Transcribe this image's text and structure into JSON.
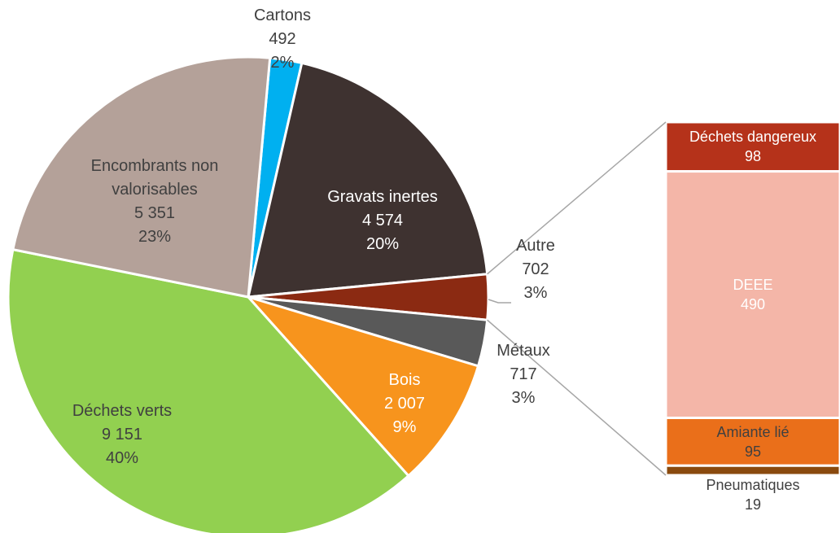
{
  "chart_data": {
    "type": "pie-of-bar",
    "categories": [
      "Cartons",
      "Gravats inertes",
      "Autre",
      "Métaux",
      "Bois",
      "Déchets verts",
      "Encombrants non valorisables"
    ],
    "values": [
      492,
      4574,
      702,
      717,
      2007,
      9151,
      5351
    ],
    "value_labels": [
      "492",
      "4 574",
      "702",
      "717",
      "2 007",
      "9 151",
      "5 351"
    ],
    "percent_labels": [
      "2%",
      "20%",
      "3%",
      "3%",
      "9%",
      "40%",
      "23%"
    ],
    "colors": [
      "#00b0f0",
      "#3e3230",
      "#8b2a12",
      "#595959",
      "#f7941d",
      "#92d050",
      "#b4a199"
    ],
    "bar": {
      "categories": [
        "Déchets dangereux",
        "DEEE",
        "Amiante lié",
        "Pneumatiques"
      ],
      "values": [
        98,
        490,
        95,
        19
      ],
      "colors": [
        "#b5321a",
        "#f4b6a8",
        "#ea6f1a",
        "#8a4a0e"
      ]
    }
  }
}
